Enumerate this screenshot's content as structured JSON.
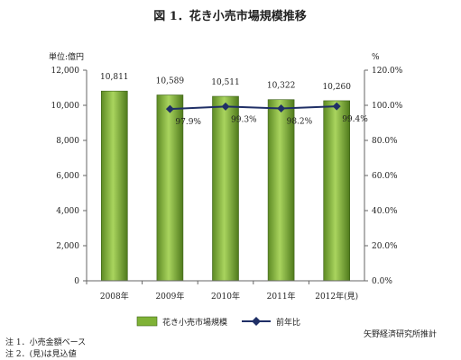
{
  "chart_data": {
    "type": "bar",
    "title": "図 1．花き小売市場規模推移",
    "categories": [
      "2008年",
      "2009年",
      "2010年",
      "2011年",
      "2012年(見)"
    ],
    "series": [
      {
        "name": "花き小売市場規模",
        "type": "bar",
        "axis": "left",
        "values": [
          10811,
          10589,
          10511,
          10322,
          10260
        ],
        "labels": [
          "10,811",
          "10,589",
          "10,511",
          "10,322",
          "10,260"
        ],
        "color": "#7fb236"
      },
      {
        "name": "前年比",
        "type": "line",
        "axis": "right",
        "values": [
          null,
          97.9,
          99.3,
          98.2,
          99.4
        ],
        "labels": [
          "",
          "97.9%",
          "99.3%",
          "98.2%",
          "99.4%"
        ],
        "color": "#1f2f66"
      }
    ],
    "left_axis": {
      "unit_label": "単位:億円",
      "ylim": [
        0,
        12000
      ],
      "ticks": [
        "0",
        "2,000",
        "4,000",
        "6,000",
        "8,000",
        "10,000",
        "12,000"
      ]
    },
    "right_axis": {
      "unit_label": "%",
      "ylim": [
        0,
        120
      ],
      "ticks": [
        "0.0%",
        "20.0%",
        "40.0%",
        "60.0%",
        "80.0%",
        "100.0%",
        "120.0%"
      ]
    },
    "grid": false,
    "legend_position": "bottom"
  },
  "source": "矢野経済研究所推計",
  "notes": [
    "注 1．小売金額ベース",
    "注 2．(見)は見込値"
  ]
}
